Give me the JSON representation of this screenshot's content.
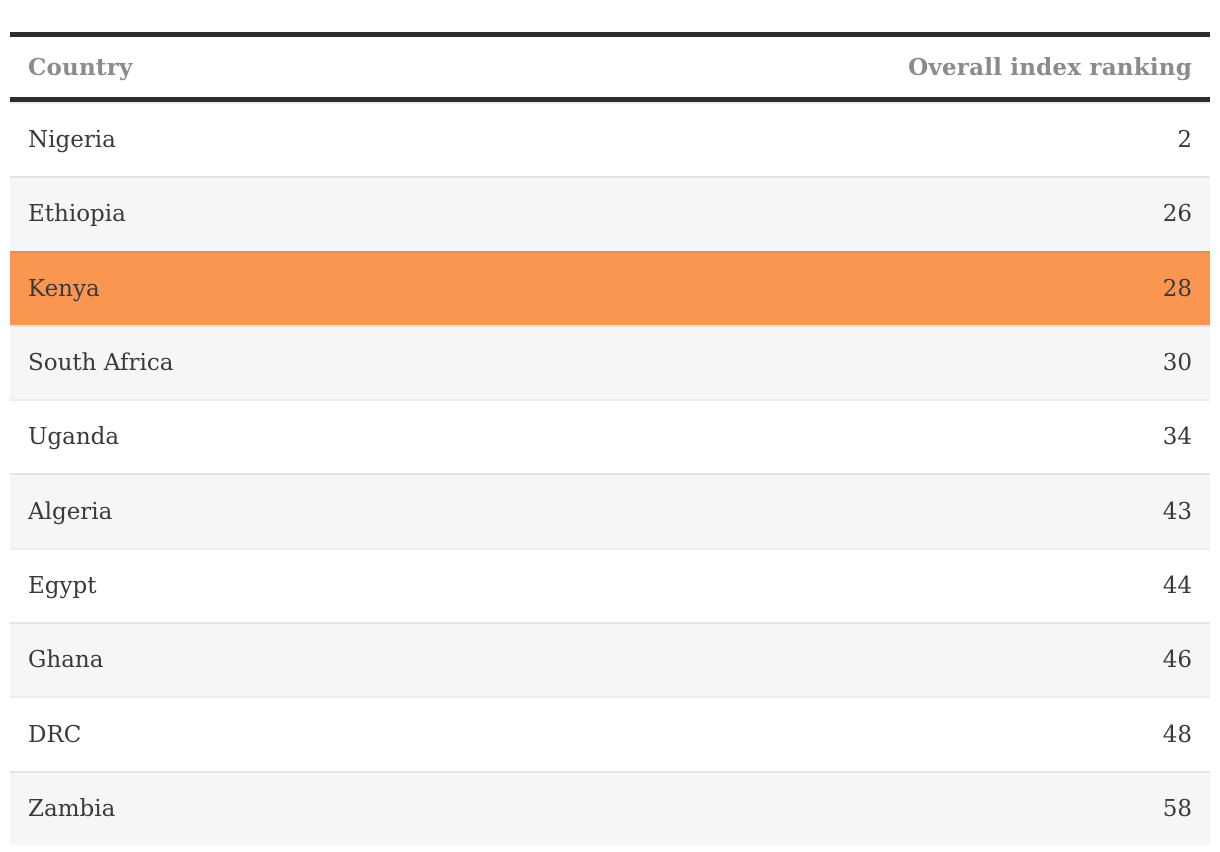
{
  "chart_data": {
    "type": "table",
    "columns": [
      "Country",
      "Overall index ranking"
    ],
    "rows": [
      {
        "country": "Nigeria",
        "rank": "2",
        "highlight": false
      },
      {
        "country": "Ethiopia",
        "rank": "26",
        "highlight": false
      },
      {
        "country": "Kenya",
        "rank": "28",
        "highlight": true
      },
      {
        "country": "South Africa",
        "rank": "30",
        "highlight": false
      },
      {
        "country": "Uganda",
        "rank": "34",
        "highlight": false
      },
      {
        "country": "Algeria",
        "rank": "43",
        "highlight": false
      },
      {
        "country": "Egypt",
        "rank": "44",
        "highlight": false
      },
      {
        "country": "Ghana",
        "rank": "46",
        "highlight": false
      },
      {
        "country": "DRC",
        "rank": "48",
        "highlight": false
      },
      {
        "country": "Zambia",
        "rank": "58",
        "highlight": false
      }
    ],
    "highlighted_country": "Kenya",
    "layout": {
      "zebra_striping": true,
      "numbers_right_aligned": true
    }
  },
  "colors": {
    "highlight": "#fb9651",
    "zebra_stripe": "#f6f6f6",
    "rule": "#2d2d2d",
    "header_text": "#8b8b8b",
    "body_text": "#3a3a3a"
  }
}
